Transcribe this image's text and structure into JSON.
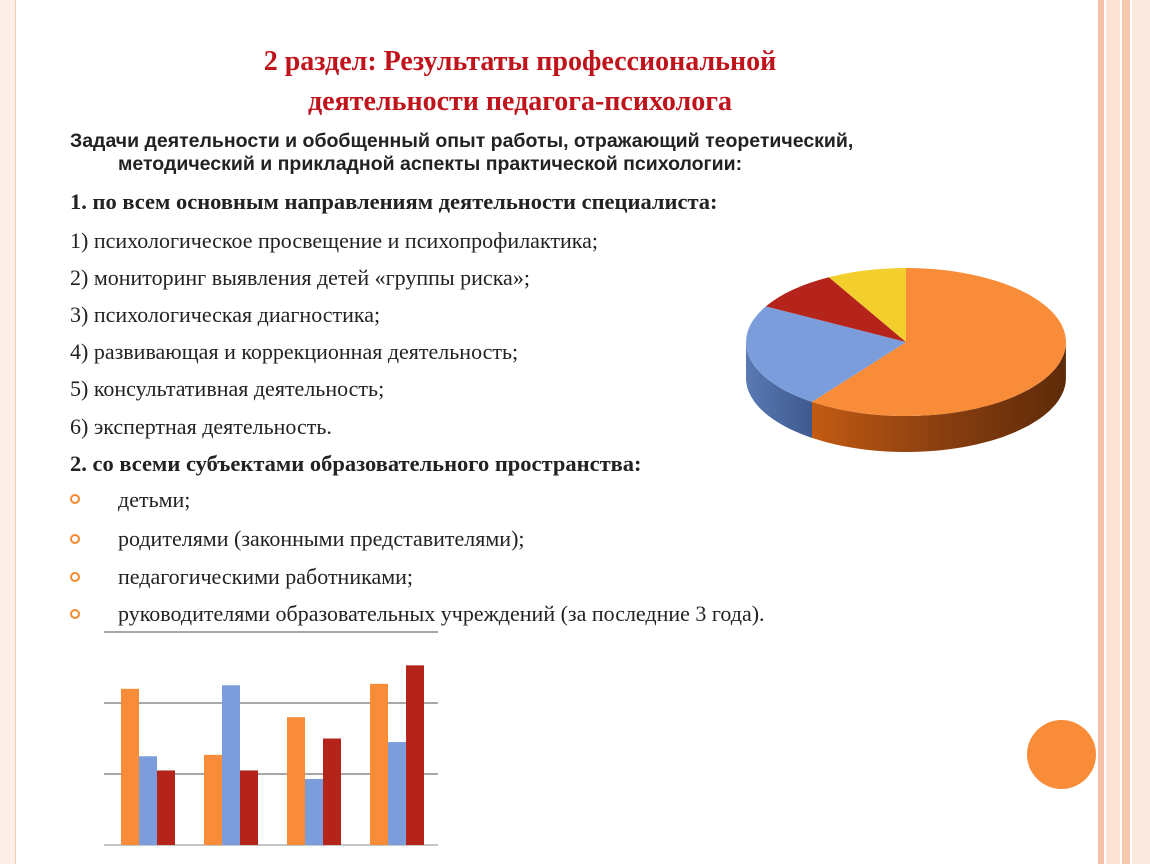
{
  "title": {
    "line1": "2 раздел: Результаты профессиональной",
    "line2": "деятельности педагога-психолога"
  },
  "subtitle": {
    "line1": "Задачи деятельности и обобщенный опыт работы, отражающий теоретический,",
    "line2": "методический и прикладной аспекты практической психологии:"
  },
  "section1": {
    "heading": "1. по всем основным направлениям деятельности специалиста:",
    "items": [
      "1) психологическое просвещение и психопрофилактика;",
      "2) мониторинг выявления детей «группы риска»;",
      "3) психологическая диагностика;",
      "4) развивающая и коррекционная деятельность;",
      "5) консультативная деятельность;",
      "6) экспертная деятельность."
    ]
  },
  "section2": {
    "heading": "2. со всеми субъектами образовательного пространства:",
    "bullets": [
      "детьми;",
      "родителями (законными представителями);",
      "педагогическими работниками;",
      "руководителями образовательных учреждений (за последние 3 года)."
    ]
  },
  "colors": {
    "accent_title": "#c0141c",
    "bullet": "#f5892e",
    "orange": "#f98c39",
    "blue": "#7b9ddb",
    "red": "#b5241b",
    "yellow": "#f2cf2c",
    "decor_circle": "#f98c39"
  },
  "chart_data": [
    {
      "type": "pie",
      "slices": [
        {
          "value": 60,
          "color": "#f98c39"
        },
        {
          "value": 23,
          "color": "#7b9ddb"
        },
        {
          "value": 9,
          "color": "#b5241b"
        },
        {
          "value": 8,
          "color": "#f2cf2c"
        }
      ],
      "style": "3d"
    },
    {
      "type": "bar",
      "categories": [
        "",
        "",
        "",
        ""
      ],
      "series": [
        {
          "values": [
            2.2,
            1.27,
            1.8,
            2.27
          ],
          "color": "#f98c39"
        },
        {
          "values": [
            1.25,
            2.25,
            0.93,
            1.45
          ],
          "color": "#7b9ddb"
        },
        {
          "values": [
            1.05,
            1.05,
            1.5,
            2.53
          ],
          "color": "#b5241b"
        }
      ],
      "ylim": [
        0,
        3
      ],
      "grid": true
    }
  ]
}
